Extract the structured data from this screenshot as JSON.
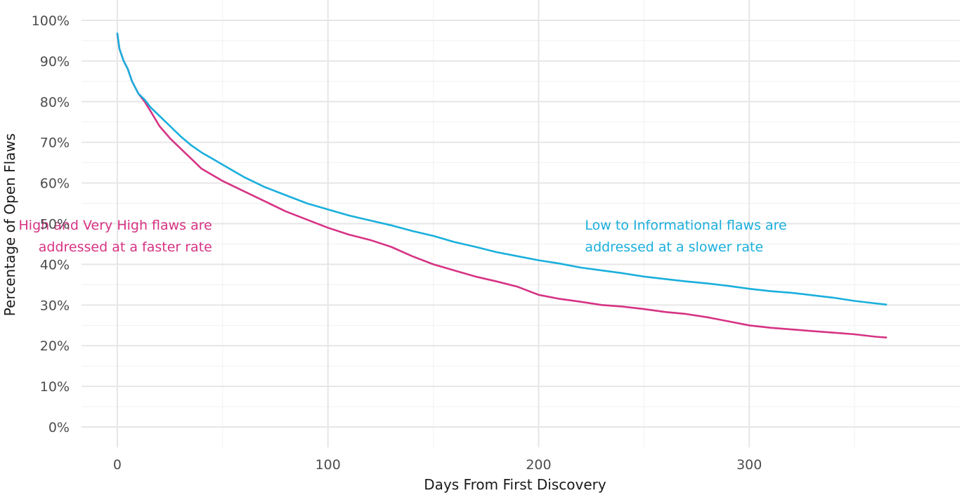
{
  "chart_data": {
    "type": "line",
    "title": "",
    "xlabel": "Days From First Discovery",
    "ylabel": "Percentage of Open Flaws",
    "xlim": [
      -17,
      400
    ],
    "ylim": [
      -5,
      105
    ],
    "x_ticks": [
      0,
      100,
      200,
      300
    ],
    "y_ticks": [
      0,
      10,
      20,
      30,
      40,
      50,
      60,
      70,
      80,
      90,
      100
    ],
    "y_tick_suffix": "%",
    "grid": true,
    "legend": "none",
    "series": [
      {
        "color": "#d63384",
        "x": [
          0,
          1,
          3,
          5,
          7,
          10,
          13,
          16,
          20,
          25,
          30,
          35,
          40,
          45,
          50,
          60,
          70,
          80,
          90,
          100,
          110,
          120,
          130,
          140,
          150,
          160,
          170,
          180,
          190,
          200,
          210,
          220,
          230,
          240,
          250,
          260,
          270,
          280,
          290,
          300,
          310,
          320,
          330,
          340,
          350,
          360,
          365
        ],
        "y": [
          96.5,
          93,
          90,
          88,
          85,
          82,
          80,
          77.5,
          74,
          71,
          68.5,
          66,
          63.5,
          62,
          60.5,
          58,
          55.5,
          53,
          51,
          49,
          47.3,
          46,
          44.3,
          42,
          40,
          38.5,
          37,
          35.8,
          34.5,
          32.5,
          31.5,
          30.8,
          30,
          29.6,
          29,
          28.3,
          27.8,
          27,
          26,
          25,
          24.4,
          24,
          23.6,
          23.2,
          22.8,
          22.2,
          22
        ]
      },
      {
        "color": "#1aafdc",
        "x": [
          0,
          1,
          3,
          5,
          7,
          10,
          13,
          16,
          20,
          25,
          30,
          35,
          40,
          45,
          50,
          60,
          70,
          80,
          90,
          100,
          110,
          120,
          130,
          140,
          150,
          160,
          170,
          180,
          190,
          200,
          210,
          220,
          230,
          240,
          250,
          260,
          270,
          280,
          290,
          300,
          310,
          320,
          330,
          340,
          350,
          360,
          365
        ],
        "y": [
          96.8,
          93,
          90,
          88,
          85,
          82,
          80.5,
          78.5,
          76.5,
          74,
          71.5,
          69.3,
          67.5,
          66,
          64.5,
          61.5,
          59,
          57,
          55,
          53.5,
          52,
          50.8,
          49.6,
          48.2,
          47,
          45.5,
          44.3,
          43,
          42,
          41,
          40.2,
          39.2,
          38.5,
          37.8,
          37,
          36.4,
          35.8,
          35.3,
          34.7,
          34,
          33.4,
          33,
          32.4,
          31.8,
          31,
          30.4,
          30.1
        ]
      }
    ],
    "annotations": [
      {
        "lines": [
          "High and Very High flaws are",
          "addressed at a faster rate"
        ],
        "color": "#d63384",
        "x": 45,
        "y": 48.5,
        "anchor": "end"
      },
      {
        "lines": [
          "Low to Informational flaws are",
          "addressed at a slower rate"
        ],
        "color": "#1aafdc",
        "x": 222,
        "y": 48.5,
        "anchor": "start"
      }
    ]
  }
}
